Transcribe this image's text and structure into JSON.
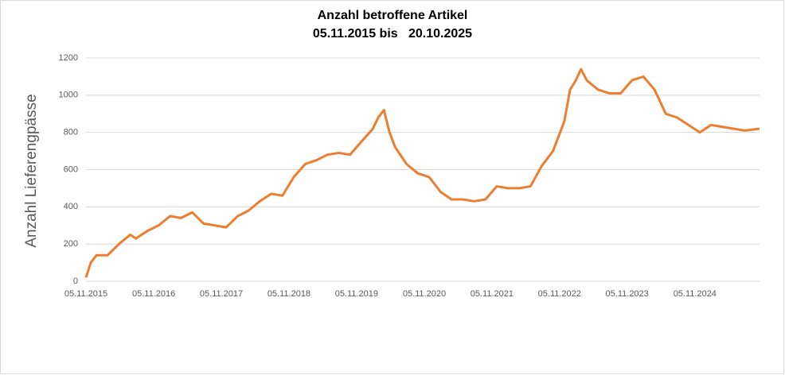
{
  "chart_data": {
    "type": "line",
    "title": "Anzahl betroffene Artikel",
    "subtitle": "05.11.2015 bis   20.10.2025",
    "y_label": "Anzahl Lieferengpässe",
    "x": [
      "05.11.2015",
      "01.12.2015",
      "01.01.2016",
      "01.03.2016",
      "01.05.2016",
      "01.07.2016",
      "01.08.2016",
      "01.10.2016",
      "01.12.2016",
      "01.02.2017",
      "01.04.2017",
      "01.06.2017",
      "01.08.2017",
      "01.10.2017",
      "01.12.2017",
      "01.02.2018",
      "01.04.2018",
      "01.06.2018",
      "01.08.2018",
      "01.10.2018",
      "01.12.2018",
      "01.02.2019",
      "01.04.2019",
      "01.06.2019",
      "01.08.2019",
      "01.10.2019",
      "01.12.2019",
      "01.02.2020",
      "01.03.2020",
      "01.04.2020",
      "01.05.2020",
      "01.06.2020",
      "01.08.2020",
      "01.10.2020",
      "01.12.2020",
      "01.02.2021",
      "01.04.2021",
      "01.06.2021",
      "01.08.2021",
      "01.10.2021",
      "01.12.2021",
      "01.02.2022",
      "01.04.2022",
      "01.06.2022",
      "01.08.2022",
      "01.10.2022",
      "01.12.2022",
      "01.01.2023",
      "01.02.2023",
      "01.03.2023",
      "01.04.2023",
      "01.06.2023",
      "01.08.2023",
      "01.10.2023",
      "01.12.2023",
      "01.02.2024",
      "01.04.2024",
      "01.06.2024",
      "01.08.2024",
      "01.10.2024",
      "01.12.2024",
      "01.02.2025",
      "01.04.2025",
      "01.06.2025",
      "01.08.2025",
      "20.10.2025"
    ],
    "series": [
      {
        "name": "Anzahl",
        "color": "#ed7d31",
        "values": [
          20,
          100,
          140,
          140,
          200,
          250,
          230,
          270,
          300,
          350,
          340,
          370,
          310,
          300,
          290,
          350,
          380,
          430,
          470,
          460,
          560,
          630,
          650,
          680,
          690,
          680,
          750,
          820,
          880,
          920,
          800,
          720,
          630,
          580,
          560,
          480,
          440,
          440,
          430,
          440,
          510,
          500,
          500,
          510,
          620,
          700,
          860,
          1030,
          1080,
          1140,
          1080,
          1030,
          1010,
          1010,
          1080,
          1100,
          1030,
          900,
          880,
          840,
          800,
          840,
          830,
          820,
          810,
          820
        ]
      }
    ],
    "xlim": [
      "05.11.2015",
      "20.10.2025"
    ],
    "xticks": [
      "05.11.2015",
      "05.11.2016",
      "05.11.2017",
      "05.11.2018",
      "05.11.2019",
      "05.11.2020",
      "05.11.2021",
      "05.11.2022",
      "05.11.2023",
      "05.11.2024"
    ],
    "ylim": [
      0,
      1200
    ],
    "yticks": [
      0,
      200,
      400,
      600,
      800,
      1000,
      1200
    ],
    "grid": true
  }
}
